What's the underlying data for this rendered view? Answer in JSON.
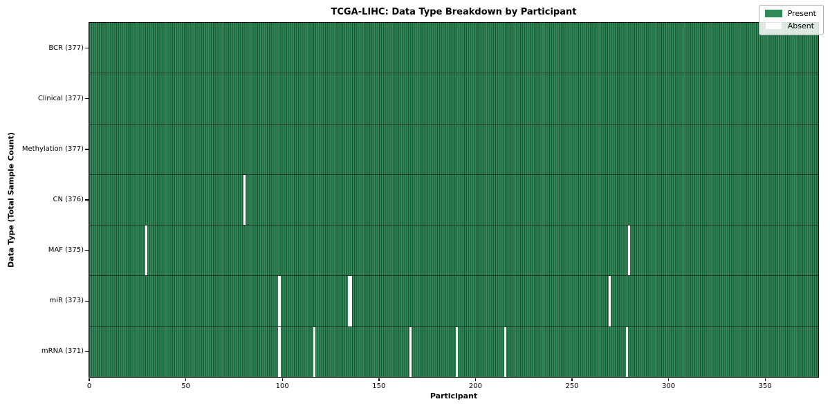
{
  "title": "TCGA-LIHC: Data Type Breakdown by Participant",
  "legend": {
    "items": [
      {
        "label": "Present",
        "color": "#2e8b57"
      },
      {
        "label": "Absent",
        "color": "#ffffff"
      }
    ]
  },
  "chart_data": {
    "type": "heatmap",
    "title": "TCGA-LIHC: Data Type Breakdown by Participant",
    "xlabel": "Participant",
    "ylabel": "Data Type (Total Sample Count)",
    "n_participants": 377,
    "xlim": [
      0,
      377.5
    ],
    "x_ticks": [
      0,
      50,
      100,
      150,
      200,
      250,
      300,
      350
    ],
    "grid": "cell-edges",
    "legend_position": "upper right",
    "colors": {
      "present": "#2e8b57",
      "absent": "#ffffff",
      "cell_edge": "#1c4a30"
    },
    "rows": [
      {
        "name": "bcr",
        "label": "BCR (377)",
        "total_present": 377,
        "absent_indices": []
      },
      {
        "name": "clinical",
        "label": "Clinical (377)",
        "total_present": 377,
        "absent_indices": []
      },
      {
        "name": "methylation",
        "label": "Methylation (377)",
        "total_present": 377,
        "absent_indices": []
      },
      {
        "name": "cn",
        "label": "CN (376)",
        "total_present": 376,
        "absent_indices": [
          80
        ]
      },
      {
        "name": "maf",
        "label": "MAF (375)",
        "total_present": 375,
        "absent_indices": [
          29,
          279
        ]
      },
      {
        "name": "mir",
        "label": "miR (373)",
        "total_present": 373,
        "absent_indices": [
          98,
          134,
          135,
          269
        ]
      },
      {
        "name": "mrna",
        "label": "mRNA (371)",
        "total_present": 371,
        "absent_indices": [
          98,
          116,
          166,
          190,
          215,
          278
        ]
      }
    ]
  }
}
